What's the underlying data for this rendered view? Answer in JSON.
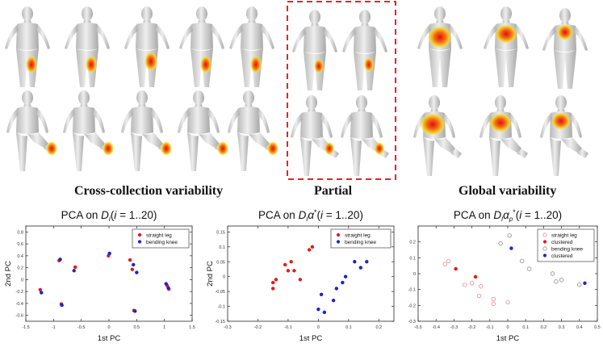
{
  "captions": {
    "cross": "Cross-collection variability",
    "partial": "Partial",
    "global": "Global variability"
  },
  "colors": {
    "red": "#e41a1c",
    "blue": "#1f23c6",
    "pink": "#f08a8a",
    "gray": "#8c8c8c",
    "dashed_box": "#e8222a"
  },
  "chart_data": [
    {
      "type": "scatter",
      "title": "PCA on D_i(i = 1..20)",
      "title_parts": [
        "PCA on ",
        "D",
        "i",
        "(",
        "i",
        " = 1..20)"
      ],
      "xlabel": "1st PC",
      "ylabel": "2nd PC",
      "xlim": [
        -1.5,
        1.5
      ],
      "ylim": [
        -0.7,
        0.9
      ],
      "xticks": [
        -1.5,
        -1,
        -0.5,
        0,
        0.5,
        1,
        1.5
      ],
      "yticks": [
        -0.6,
        -0.4,
        -0.2,
        0,
        0.2,
        0.4,
        0.6,
        0.8
      ],
      "legend_position": "top-right",
      "series": [
        {
          "name": "straight leg",
          "color": "#e41a1c",
          "marker": "filled",
          "points": [
            [
              -1.24,
              -0.17
            ],
            [
              -0.9,
              0.32
            ],
            [
              -0.86,
              -0.41
            ],
            [
              -0.61,
              0.21
            ],
            [
              -0.01,
              0.4
            ],
            [
              0.38,
              0.33
            ],
            [
              0.42,
              0.17
            ],
            [
              0.45,
              -0.52
            ],
            [
              1.05,
              -0.1
            ],
            [
              1.08,
              -0.16
            ]
          ]
        },
        {
          "name": "bending knee",
          "color": "#1f23c6",
          "marker": "filled",
          "points": [
            [
              -1.22,
              -0.22
            ],
            [
              -0.88,
              0.34
            ],
            [
              -0.85,
              -0.43
            ],
            [
              -0.63,
              0.15
            ],
            [
              0.01,
              0.44
            ],
            [
              0.44,
              0.25
            ],
            [
              0.5,
              0.12
            ],
            [
              0.47,
              -0.53
            ],
            [
              1.03,
              -0.07
            ],
            [
              1.07,
              -0.14
            ]
          ]
        }
      ]
    },
    {
      "type": "scatter",
      "title": "PCA on D_i α*(i = 1..20)",
      "title_parts": [
        "PCA on ",
        "D",
        "i",
        "α",
        "*",
        "(",
        "i",
        " = 1..20)"
      ],
      "xlabel": "1st PC",
      "ylabel": "2nd PC",
      "xlim": [
        -0.3,
        0.25
      ],
      "ylim": [
        -0.15,
        0.17
      ],
      "xticks": [
        -0.3,
        -0.2,
        -0.1,
        0,
        0.1,
        0.2
      ],
      "yticks": [
        -0.15,
        -0.1,
        -0.05,
        0,
        0.05,
        0.1,
        0.15
      ],
      "legend_position": "top-right",
      "series": [
        {
          "name": "straight leg",
          "color": "#e41a1c",
          "marker": "filled",
          "points": [
            [
              -0.15,
              -0.02
            ],
            [
              -0.15,
              -0.04
            ],
            [
              -0.14,
              -0.01
            ],
            [
              -0.11,
              0.04
            ],
            [
              -0.1,
              0.02
            ],
            [
              -0.09,
              0.05
            ],
            [
              -0.08,
              0.02
            ],
            [
              -0.06,
              -0.01
            ],
            [
              -0.03,
              0.09
            ],
            [
              -0.02,
              0.1
            ]
          ]
        },
        {
          "name": "bending knee",
          "color": "#1f23c6",
          "marker": "filled",
          "points": [
            [
              0.0,
              -0.11
            ],
            [
              0.01,
              -0.06
            ],
            [
              0.02,
              -0.12
            ],
            [
              0.05,
              -0.08
            ],
            [
              0.06,
              -0.04
            ],
            [
              0.08,
              -0.02
            ],
            [
              0.09,
              0.0
            ],
            [
              0.12,
              0.05
            ],
            [
              0.14,
              0.03
            ],
            [
              0.16,
              0.05
            ]
          ]
        }
      ]
    },
    {
      "type": "scatter",
      "title": "PCA on D_i α_p*(i = 1..20)",
      "title_parts": [
        "PCA on ",
        "D",
        "i",
        "α",
        "p",
        "*",
        "(",
        "i",
        " = 1..20)"
      ],
      "xlabel": "1st PC",
      "ylabel": "2nd PC",
      "xlim": [
        -0.5,
        0.5
      ],
      "ylim": [
        -0.3,
        0.3
      ],
      "xticks": [
        -0.5,
        -0.4,
        -0.3,
        -0.2,
        -0.1,
        0,
        0.1,
        0.2,
        0.3,
        0.4,
        0.5
      ],
      "yticks": [
        -0.3,
        -0.2,
        -0.1,
        0,
        0.1,
        0.2
      ],
      "legend_position": "top-right",
      "series": [
        {
          "name": "straight leg",
          "color": "#f08a8a",
          "marker": "open",
          "points": [
            [
              -0.35,
              0.06
            ],
            [
              -0.33,
              0.08
            ],
            [
              -0.24,
              -0.07
            ],
            [
              -0.2,
              -0.06
            ],
            [
              -0.16,
              -0.14
            ],
            [
              -0.15,
              -0.08
            ],
            [
              -0.08,
              -0.16
            ],
            [
              -0.08,
              -0.19
            ],
            [
              0.0,
              -0.18
            ]
          ]
        },
        {
          "name": "clustered",
          "color": "#e41a1c",
          "marker": "filled",
          "points": [
            [
              -0.29,
              0.03
            ],
            [
              -0.18,
              -0.02
            ]
          ]
        },
        {
          "name": "bending knee",
          "color": "#8c8c8c",
          "marker": "open",
          "points": [
            [
              -0.04,
              0.19
            ],
            [
              0.01,
              0.24
            ],
            [
              0.08,
              0.08
            ],
            [
              0.12,
              0.03
            ],
            [
              0.27,
              -0.05
            ],
            [
              0.25,
              0.0
            ],
            [
              0.3,
              -0.04
            ],
            [
              0.4,
              -0.07
            ]
          ]
        },
        {
          "name": "clustered",
          "color": "#1f23c6",
          "marker": "filled",
          "points": [
            [
              0.02,
              0.16
            ],
            [
              0.43,
              -0.06
            ]
          ]
        }
      ]
    }
  ]
}
